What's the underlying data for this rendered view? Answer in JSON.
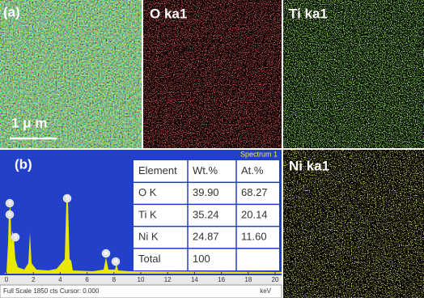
{
  "panels": [
    {
      "label": "(a)",
      "scale_bar": "1 μ m"
    },
    {
      "label": "O ka1"
    },
    {
      "label": "Ti ka1"
    },
    {
      "label": "Ni ka1"
    }
  ],
  "spectrum": {
    "label": "(b)",
    "title": "Spectrum 1",
    "xlim": [
      0,
      20
    ],
    "xticks": [
      0,
      2,
      4,
      6,
      8,
      10,
      12,
      14,
      16,
      18,
      20
    ],
    "x_unit": "keV",
    "footer": "Full Scale 1850 cts Cursor: 0.000",
    "peak_labels": [
      "Ti",
      "O",
      "Ti",
      "Ti",
      "Ni",
      "Ni"
    ]
  },
  "table": {
    "header": [
      "Element",
      "Wt.%",
      "At.%"
    ],
    "rows": [
      [
        "O K",
        "39.90",
        "68.27"
      ],
      [
        "Ti K",
        "35.24",
        "20.14"
      ],
      [
        "Ni K",
        "24.87",
        "11.60"
      ],
      [
        "Total",
        "100"
      ]
    ]
  }
}
